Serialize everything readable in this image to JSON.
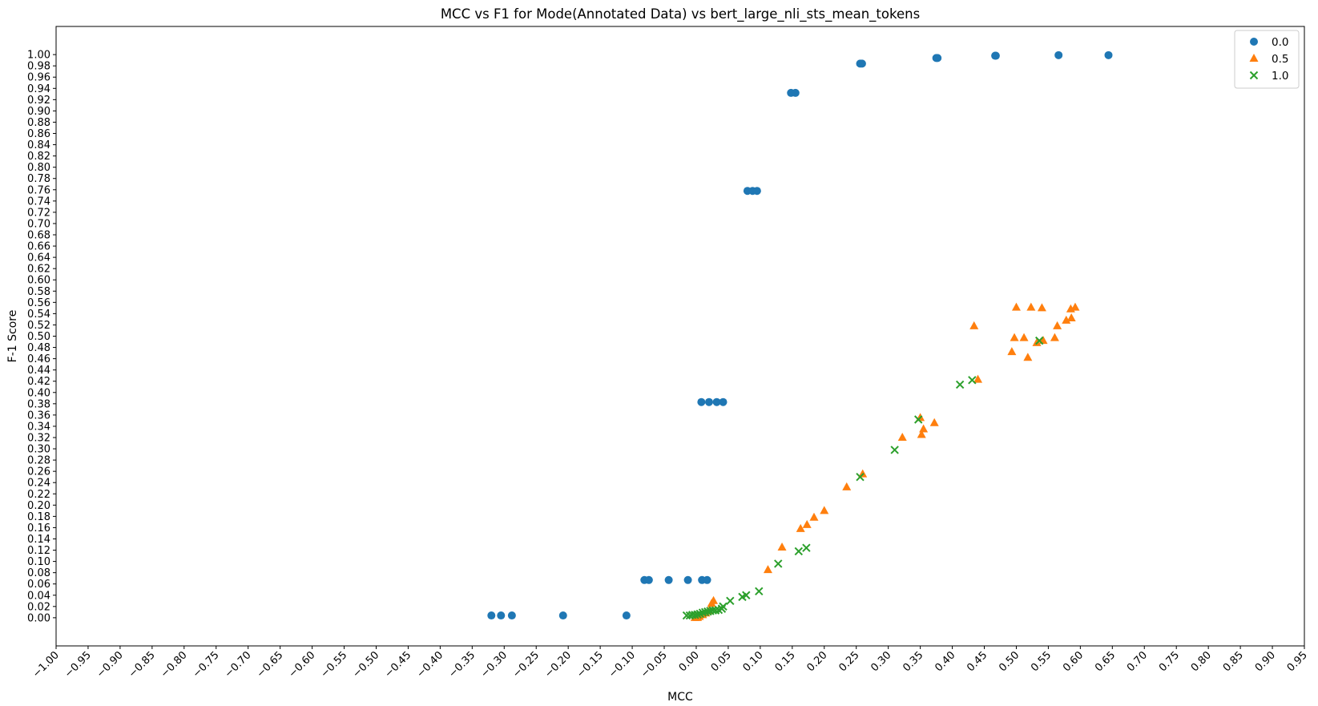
{
  "chart_data": {
    "type": "scatter",
    "title": "MCC vs F1 for Mode(Annotated Data) vs bert_large_nli_sts_mean_tokens",
    "xlabel": "MCC",
    "ylabel": "F-1 Score",
    "xlim": [
      -1.0,
      0.95
    ],
    "ylim": [
      -0.05,
      1.05
    ],
    "xtick_step": 0.05,
    "ytick_range": [
      0.0,
      1.0
    ],
    "ytick_step": 0.02,
    "grid": false,
    "legend_position": "top-right",
    "series": [
      {
        "name": "0.0",
        "marker": "circle",
        "color": "#1f77b4",
        "points": [
          [
            -0.32,
            0.004
          ],
          [
            -0.305,
            0.004
          ],
          [
            -0.288,
            0.004
          ],
          [
            -0.208,
            0.004
          ],
          [
            -0.109,
            0.004
          ],
          [
            -0.081,
            0.067
          ],
          [
            -0.074,
            0.067
          ],
          [
            -0.043,
            0.067
          ],
          [
            -0.013,
            0.067
          ],
          [
            0.009,
            0.067
          ],
          [
            0.017,
            0.067
          ],
          [
            0.008,
            0.383
          ],
          [
            0.02,
            0.383
          ],
          [
            0.032,
            0.383
          ],
          [
            0.042,
            0.383
          ],
          [
            0.08,
            0.758
          ],
          [
            0.088,
            0.758
          ],
          [
            0.095,
            0.758
          ],
          [
            0.148,
            0.932
          ],
          [
            0.155,
            0.932
          ],
          [
            0.256,
            0.984
          ],
          [
            0.259,
            0.984
          ],
          [
            0.375,
            0.994
          ],
          [
            0.377,
            0.994
          ],
          [
            0.467,
            0.998
          ],
          [
            0.468,
            0.998
          ],
          [
            0.566,
            0.999
          ],
          [
            0.644,
            0.999
          ]
        ]
      },
      {
        "name": "0.5",
        "marker": "triangle",
        "color": "#ff7f0e",
        "points": [
          [
            -0.002,
            0.0
          ],
          [
            0.002,
            0.0
          ],
          [
            0.005,
            0.002
          ],
          [
            0.01,
            0.005
          ],
          [
            0.015,
            0.008
          ],
          [
            0.02,
            0.012
          ],
          [
            0.024,
            0.025
          ],
          [
            0.027,
            0.03
          ],
          [
            0.112,
            0.085
          ],
          [
            0.134,
            0.125
          ],
          [
            0.163,
            0.158
          ],
          [
            0.173,
            0.165
          ],
          [
            0.184,
            0.178
          ],
          [
            0.2,
            0.19
          ],
          [
            0.235,
            0.232
          ],
          [
            0.26,
            0.255
          ],
          [
            0.322,
            0.32
          ],
          [
            0.35,
            0.355
          ],
          [
            0.352,
            0.325
          ],
          [
            0.355,
            0.335
          ],
          [
            0.372,
            0.346
          ],
          [
            0.434,
            0.518
          ],
          [
            0.44,
            0.423
          ],
          [
            0.493,
            0.472
          ],
          [
            0.497,
            0.497
          ],
          [
            0.5,
            0.551
          ],
          [
            0.512,
            0.497
          ],
          [
            0.518,
            0.462
          ],
          [
            0.523,
            0.551
          ],
          [
            0.532,
            0.488
          ],
          [
            0.54,
            0.55
          ],
          [
            0.542,
            0.492
          ],
          [
            0.56,
            0.497
          ],
          [
            0.564,
            0.518
          ],
          [
            0.578,
            0.528
          ],
          [
            0.585,
            0.548
          ],
          [
            0.586,
            0.532
          ],
          [
            0.592,
            0.551
          ]
        ]
      },
      {
        "name": "1.0",
        "marker": "x",
        "color": "#2ca02c",
        "points": [
          [
            -0.015,
            0.004
          ],
          [
            -0.01,
            0.004
          ],
          [
            -0.006,
            0.005
          ],
          [
            -0.002,
            0.005
          ],
          [
            0.002,
            0.006
          ],
          [
            0.006,
            0.007
          ],
          [
            0.01,
            0.009
          ],
          [
            0.014,
            0.01
          ],
          [
            0.018,
            0.011
          ],
          [
            0.022,
            0.012
          ],
          [
            0.026,
            0.013
          ],
          [
            0.03,
            0.013
          ],
          [
            0.035,
            0.014
          ],
          [
            0.04,
            0.016
          ],
          [
            0.042,
            0.02
          ],
          [
            0.053,
            0.03
          ],
          [
            0.072,
            0.037
          ],
          [
            0.078,
            0.04
          ],
          [
            0.098,
            0.047
          ],
          [
            0.128,
            0.096
          ],
          [
            0.16,
            0.118
          ],
          [
            0.172,
            0.124
          ],
          [
            0.256,
            0.25
          ],
          [
            0.31,
            0.298
          ],
          [
            0.347,
            0.352
          ],
          [
            0.412,
            0.414
          ],
          [
            0.431,
            0.422
          ],
          [
            0.536,
            0.492
          ]
        ]
      }
    ]
  }
}
